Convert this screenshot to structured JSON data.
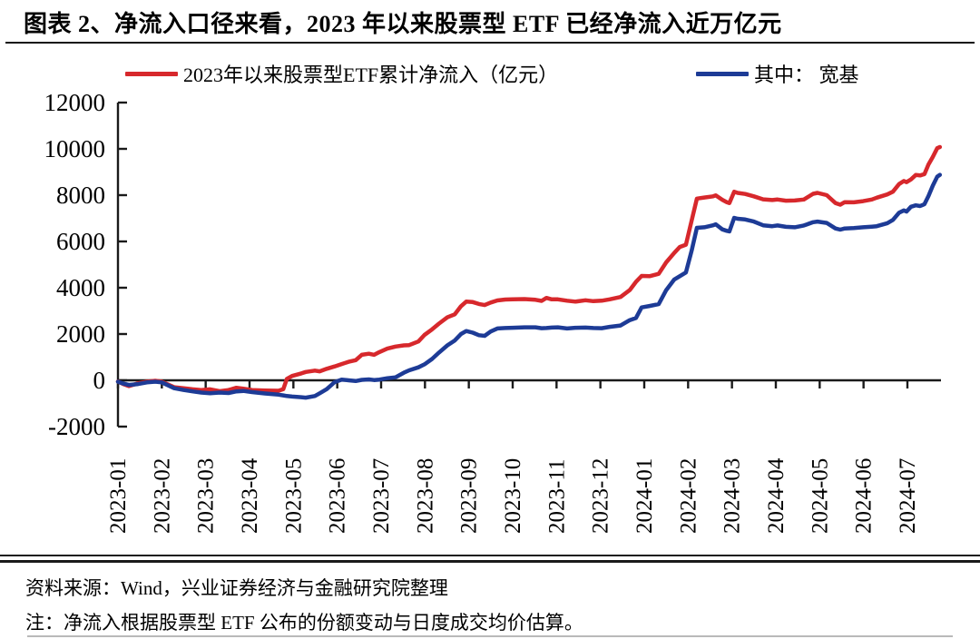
{
  "figure": {
    "title": "图表 2、净流入口径来看，2023 年以来股票型 ETF 已经净流入近万亿元"
  },
  "legend": [
    {
      "label": "2023年以来股票型ETF累计净流入（亿元）",
      "color": "#d7282c"
    },
    {
      "label": "其中： 宽基",
      "color": "#1d3b96"
    }
  ],
  "footer": {
    "source": "资料来源：Wind，兴业证券经济与金融研究院整理",
    "note": "注：净流入根据股票型 ETF 公布的份额变动与日度成交均价估算。"
  },
  "chart_data": {
    "type": "line",
    "title": "",
    "xlabel": "",
    "ylabel": "",
    "unit": "亿元",
    "ylim": [
      -2000,
      12000
    ],
    "y_ticks": [
      12000,
      10000,
      8000,
      6000,
      4000,
      2000,
      0,
      -2000
    ],
    "x_tick_labels": [
      "2023-01",
      "2023-02",
      "2023-03",
      "2023-04",
      "2023-05",
      "2023-06",
      "2023-07",
      "2023-08",
      "2023-09",
      "2023-10",
      "2023-11",
      "2023-12",
      "2024-01",
      "2024-02",
      "2024-03",
      "2024-04",
      "2024-05",
      "2024-06",
      "2024-07"
    ],
    "grid": false,
    "legend_position": "top",
    "x_months": [
      0,
      0.12,
      0.25,
      0.46,
      0.66,
      0.85,
      1.0,
      1.28,
      1.5,
      1.7,
      1.9,
      2.1,
      2.32,
      2.52,
      2.7,
      2.86,
      3.06,
      3.35,
      3.66,
      3.77,
      3.85,
      3.97,
      4.18,
      4.28,
      4.49,
      4.6,
      4.76,
      4.94,
      5.1,
      5.26,
      5.42,
      5.56,
      5.72,
      5.84,
      5.96,
      6.14,
      6.33,
      6.52,
      6.64,
      6.85,
      6.99,
      7.16,
      7.32,
      7.51,
      7.68,
      7.82,
      7.94,
      8.09,
      8.23,
      8.36,
      8.5,
      8.65,
      8.83,
      9.0,
      9.27,
      9.52,
      9.66,
      9.77,
      9.89,
      10.03,
      10.24,
      10.43,
      10.66,
      10.84,
      11.03,
      11.21,
      11.46,
      11.67,
      11.81,
      11.94,
      12.12,
      12.33,
      12.5,
      12.68,
      12.81,
      12.95,
      13.08,
      13.2,
      13.37,
      13.57,
      13.63,
      13.78,
      13.88,
      13.94,
      14.05,
      14.13,
      14.3,
      14.5,
      14.71,
      14.92,
      15.04,
      15.23,
      15.43,
      15.64,
      15.85,
      15.95,
      16.16,
      16.36,
      16.47,
      16.57,
      16.78,
      16.99,
      17.19,
      17.3,
      17.54,
      17.67,
      17.81,
      17.92,
      17.98,
      18.08,
      18.19,
      18.29,
      18.39,
      18.48,
      18.58,
      18.68,
      18.74
    ],
    "series": [
      {
        "name": "2023年以来股票型ETF累计净流入（亿元）",
        "color": "#d7282c",
        "values": [
          -50,
          -160,
          -250,
          -130,
          -60,
          -20,
          -60,
          -300,
          -340,
          -390,
          -420,
          -390,
          -470,
          -420,
          -320,
          -360,
          -420,
          -440,
          -450,
          -380,
          60,
          190,
          300,
          360,
          420,
          390,
          500,
          600,
          700,
          800,
          870,
          1100,
          1150,
          1100,
          1220,
          1370,
          1460,
          1510,
          1520,
          1680,
          1960,
          2200,
          2450,
          2720,
          2850,
          3200,
          3400,
          3380,
          3300,
          3250,
          3360,
          3450,
          3490,
          3500,
          3510,
          3480,
          3430,
          3560,
          3500,
          3500,
          3440,
          3400,
          3460,
          3420,
          3440,
          3500,
          3600,
          3900,
          4250,
          4510,
          4500,
          4600,
          5100,
          5500,
          5760,
          5860,
          6900,
          7850,
          7900,
          7950,
          7990,
          7800,
          7700,
          7660,
          8150,
          8100,
          8050,
          7950,
          7820,
          7790,
          7810,
          7760,
          7770,
          7810,
          8060,
          8100,
          8000,
          7660,
          7590,
          7700,
          7690,
          7740,
          7810,
          7890,
          8030,
          8150,
          8480,
          8610,
          8560,
          8680,
          8870,
          8850,
          8910,
          9320,
          9650,
          10030,
          10080
        ]
      },
      {
        "name": "其中：宽基",
        "color": "#1d3b96",
        "values": [
          -60,
          -140,
          -200,
          -160,
          -90,
          -60,
          -90,
          -340,
          -420,
          -480,
          -530,
          -560,
          -530,
          -550,
          -480,
          -460,
          -510,
          -570,
          -620,
          -650,
          -680,
          -700,
          -730,
          -750,
          -680,
          -560,
          -380,
          -80,
          30,
          0,
          -30,
          20,
          40,
          10,
          30,
          90,
          130,
          330,
          430,
          560,
          690,
          920,
          1200,
          1510,
          1720,
          2000,
          2130,
          2060,
          1950,
          1920,
          2110,
          2240,
          2260,
          2270,
          2290,
          2290,
          2250,
          2260,
          2280,
          2290,
          2240,
          2270,
          2280,
          2260,
          2250,
          2310,
          2370,
          2600,
          2690,
          3150,
          3210,
          3290,
          3900,
          4350,
          4500,
          4660,
          5600,
          6590,
          6610,
          6700,
          6740,
          6520,
          6460,
          6430,
          7020,
          6980,
          6950,
          6860,
          6700,
          6660,
          6690,
          6630,
          6610,
          6690,
          6830,
          6860,
          6800,
          6560,
          6510,
          6560,
          6580,
          6610,
          6640,
          6660,
          6790,
          6930,
          7240,
          7340,
          7290,
          7500,
          7560,
          7530,
          7610,
          7960,
          8410,
          8800,
          8880
        ]
      }
    ]
  }
}
